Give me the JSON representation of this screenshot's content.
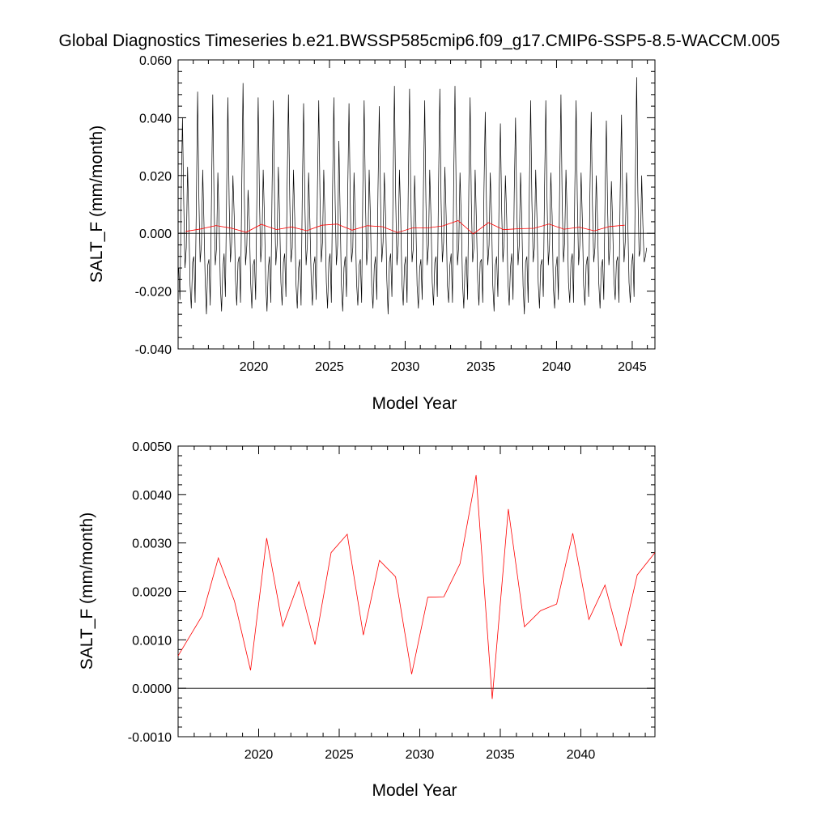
{
  "figure": {
    "title": "Global Diagnostics Timeseries b.e21.BWSSP585cmip6.f09_g17.CMIP6-SSP5-8.5-WACCM.005"
  },
  "chart_data": [
    {
      "type": "line",
      "xlabel": "Model Year",
      "ylabel": "SALT_F (mm/month)",
      "xlim": [
        2015,
        2046.5
      ],
      "ylim": [
        -0.04,
        0.06
      ],
      "x_ticks": [
        2020,
        2025,
        2030,
        2035,
        2040,
        2045
      ],
      "x_tick_labels": [
        "2020",
        "2025",
        "2030",
        "2035",
        "2040",
        "2045"
      ],
      "y_ticks": [
        -0.04,
        -0.02,
        0.0,
        0.02,
        0.04,
        0.06
      ],
      "y_tick_labels": [
        "-0.040",
        "-0.020",
        "0.000",
        "0.020",
        "0.040",
        "0.060"
      ],
      "grid": false,
      "reference_line": 0.0,
      "monthly_series": {
        "color": "#000000",
        "x_start": 2015.04,
        "x_step": 0.08333,
        "monthly_values": [
          -0.012,
          -0.023,
          0.015,
          0.04,
          0.01,
          -0.012,
          -0.005,
          0.023,
          0.005,
          -0.018,
          -0.026,
          -0.01,
          -0.008,
          -0.024,
          0.012,
          0.049,
          0.012,
          -0.01,
          -0.004,
          0.022,
          0.004,
          -0.017,
          -0.028,
          -0.011,
          -0.009,
          -0.025,
          0.014,
          0.048,
          0.011,
          -0.011,
          -0.005,
          0.021,
          0.005,
          -0.018,
          -0.027,
          -0.012,
          -0.007,
          -0.022,
          0.016,
          0.047,
          0.01,
          -0.01,
          -0.003,
          0.02,
          0.006,
          -0.016,
          -0.025,
          -0.01,
          -0.008,
          -0.024,
          0.018,
          0.052,
          0.013,
          -0.011,
          -0.004,
          0.015,
          0.004,
          -0.017,
          -0.026,
          -0.011,
          -0.009,
          -0.023,
          0.015,
          0.047,
          0.012,
          -0.01,
          -0.003,
          0.022,
          0.005,
          -0.018,
          -0.027,
          -0.012,
          -0.008,
          -0.024,
          0.016,
          0.046,
          0.011,
          -0.011,
          -0.004,
          0.023,
          0.006,
          -0.017,
          -0.025,
          -0.01,
          -0.007,
          -0.022,
          0.017,
          0.048,
          0.012,
          -0.01,
          -0.005,
          0.022,
          0.005,
          -0.018,
          -0.026,
          -0.012,
          -0.009,
          -0.025,
          0.014,
          0.045,
          0.01,
          -0.011,
          -0.004,
          0.021,
          0.004,
          -0.016,
          -0.025,
          -0.011,
          -0.008,
          -0.023,
          0.016,
          0.046,
          0.012,
          -0.01,
          -0.003,
          0.022,
          0.005,
          -0.017,
          -0.026,
          -0.01,
          -0.007,
          -0.024,
          0.015,
          0.047,
          0.011,
          -0.011,
          -0.004,
          0.032,
          0.006,
          -0.018,
          -0.027,
          -0.012,
          -0.008,
          -0.022,
          0.014,
          0.045,
          0.01,
          -0.01,
          -0.005,
          0.021,
          0.004,
          -0.017,
          -0.025,
          -0.011,
          -0.009,
          -0.024,
          0.016,
          0.046,
          0.012,
          -0.011,
          -0.004,
          0.022,
          0.005,
          -0.018,
          -0.026,
          -0.012,
          -0.008,
          -0.023,
          0.015,
          0.044,
          0.011,
          -0.01,
          -0.003,
          0.021,
          0.006,
          -0.016,
          -0.028,
          -0.01,
          -0.007,
          -0.022,
          0.018,
          0.051,
          0.013,
          -0.011,
          -0.004,
          0.022,
          0.005,
          -0.017,
          -0.025,
          -0.011,
          -0.008,
          -0.024,
          0.016,
          0.05,
          0.012,
          -0.01,
          -0.005,
          0.02,
          0.004,
          -0.018,
          -0.026,
          -0.012,
          -0.009,
          -0.023,
          0.015,
          0.046,
          0.011,
          -0.011,
          -0.004,
          0.022,
          0.005,
          -0.017,
          -0.025,
          -0.01,
          -0.008,
          -0.022,
          0.017,
          0.05,
          0.012,
          -0.01,
          -0.003,
          0.023,
          0.006,
          -0.018,
          -0.024,
          -0.011,
          -0.007,
          -0.024,
          0.018,
          0.051,
          0.013,
          -0.011,
          -0.004,
          0.021,
          0.005,
          -0.017,
          -0.026,
          -0.012,
          -0.008,
          -0.023,
          0.016,
          0.047,
          0.011,
          -0.01,
          -0.005,
          0.022,
          0.004,
          -0.016,
          -0.025,
          -0.01,
          -0.009,
          -0.024,
          0.015,
          0.042,
          0.01,
          -0.011,
          -0.004,
          0.021,
          0.006,
          -0.018,
          -0.027,
          -0.011,
          -0.008,
          -0.022,
          0.013,
          0.038,
          0.009,
          -0.01,
          -0.003,
          0.02,
          0.005,
          -0.017,
          -0.025,
          -0.012,
          -0.007,
          -0.023,
          0.014,
          0.04,
          0.01,
          -0.011,
          -0.004,
          0.021,
          0.004,
          -0.018,
          -0.028,
          -0.01,
          -0.008,
          -0.024,
          0.016,
          0.046,
          0.011,
          -0.01,
          -0.005,
          0.022,
          0.005,
          -0.017,
          -0.026,
          -0.011,
          -0.009,
          -0.022,
          0.015,
          0.046,
          0.012,
          -0.011,
          -0.004,
          0.021,
          0.006,
          -0.019,
          -0.026,
          -0.012,
          -0.008,
          -0.023,
          0.016,
          0.048,
          0.011,
          -0.01,
          -0.003,
          0.022,
          0.005,
          -0.017,
          -0.024,
          -0.01,
          -0.007,
          -0.024,
          0.015,
          0.046,
          0.012,
          -0.011,
          -0.004,
          0.021,
          0.004,
          -0.018,
          -0.025,
          -0.011,
          -0.008,
          -0.022,
          0.014,
          0.042,
          0.01,
          -0.01,
          -0.005,
          0.02,
          0.005,
          -0.017,
          -0.026,
          -0.012,
          -0.009,
          -0.023,
          0.013,
          0.039,
          0.009,
          -0.011,
          -0.004,
          0.018,
          0.004,
          -0.016,
          -0.023,
          -0.01,
          -0.008,
          -0.024,
          0.015,
          0.041,
          0.01,
          -0.01,
          -0.003,
          0.021,
          0.005,
          -0.017,
          -0.024,
          -0.011,
          -0.007,
          -0.022,
          0.018,
          0.054,
          0.014,
          -0.008,
          -0.006,
          0.02,
          0.003,
          -0.01,
          -0.008,
          -0.005
        ]
      },
      "annual_series": {
        "color": "#ff0000",
        "x": [
          2015.5,
          2016.5,
          2017.5,
          2018.5,
          2019.5,
          2020.5,
          2021.5,
          2022.5,
          2023.5,
          2024.5,
          2025.5,
          2026.5,
          2027.5,
          2028.5,
          2029.5,
          2030.5,
          2031.5,
          2032.5,
          2033.5,
          2034.5,
          2035.5,
          2036.5,
          2037.5,
          2038.5,
          2039.5,
          2040.5,
          2041.5,
          2042.5,
          2043.5,
          2044.5
        ],
        "values": [
          0.00067,
          0.0015,
          0.00269,
          0.0018,
          0.00037,
          0.0031,
          0.00128,
          0.0022,
          0.0009,
          0.0028,
          0.00318,
          0.0011,
          0.00264,
          0.0023,
          0.00029,
          0.00188,
          0.00189,
          0.00257,
          0.0044,
          -0.00022,
          0.0037,
          0.00127,
          0.0016,
          0.00174,
          0.0032,
          0.00142,
          0.00213,
          0.00087,
          0.00234,
          0.0028
        ]
      }
    },
    {
      "type": "line",
      "xlabel": "Model Year",
      "ylabel": "SALT_F (mm/month)",
      "xlim": [
        2015,
        2044.6
      ],
      "ylim": [
        -0.001,
        0.005
      ],
      "x_ticks": [
        2020,
        2025,
        2030,
        2035,
        2040
      ],
      "x_tick_labels": [
        "2020",
        "2025",
        "2030",
        "2035",
        "2040"
      ],
      "y_ticks": [
        -0.001,
        0.0,
        0.001,
        0.002,
        0.003,
        0.004,
        0.005
      ],
      "y_tick_labels": [
        "-0.0010",
        "0.0000",
        "0.0010",
        "0.0020",
        "0.0030",
        "0.0040",
        "0.0050"
      ],
      "grid": false,
      "reference_line": 0.0,
      "series": [
        {
          "color": "#ff0000",
          "x": [
            2015.0,
            2016.5,
            2017.5,
            2018.5,
            2019.5,
            2020.5,
            2021.5,
            2022.5,
            2023.5,
            2024.5,
            2025.5,
            2026.5,
            2027.5,
            2028.5,
            2029.5,
            2030.5,
            2031.5,
            2032.5,
            2033.5,
            2034.5,
            2035.5,
            2036.5,
            2037.5,
            2038.5,
            2039.5,
            2040.5,
            2041.5,
            2042.5,
            2043.5,
            2044.6
          ],
          "values": [
            0.00067,
            0.0015,
            0.00269,
            0.0018,
            0.00037,
            0.0031,
            0.00128,
            0.0022,
            0.0009,
            0.0028,
            0.00318,
            0.0011,
            0.00264,
            0.0023,
            0.00029,
            0.00188,
            0.00189,
            0.00257,
            0.0044,
            -0.00022,
            0.0037,
            0.00127,
            0.0016,
            0.00174,
            0.0032,
            0.00142,
            0.00213,
            0.00087,
            0.00234,
            0.0028
          ]
        }
      ]
    }
  ]
}
